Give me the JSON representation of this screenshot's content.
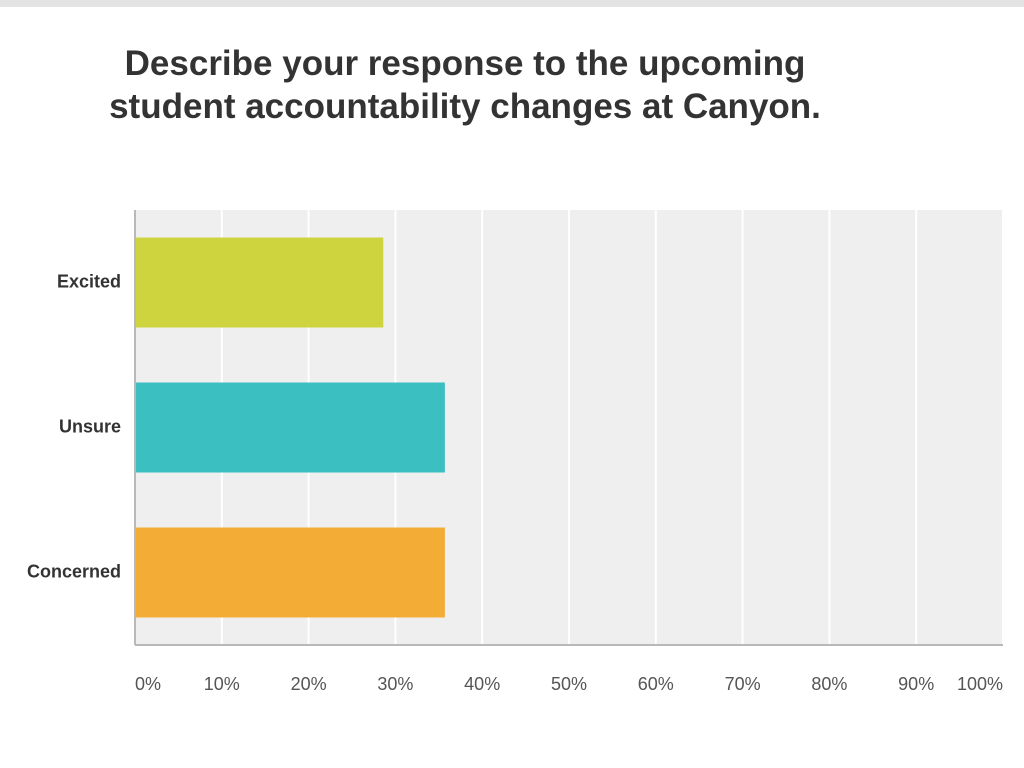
{
  "chart_data": {
    "type": "bar",
    "orientation": "horizontal",
    "title_lines": [
      "Describe your response to the upcoming",
      "student accountability changes at Canyon."
    ],
    "categories": [
      "Excited",
      "Unsure",
      "Concerned"
    ],
    "values": [
      28.6,
      35.7,
      35.7
    ],
    "colors": [
      "#cdd43e",
      "#3bbfc1",
      "#f3ac35"
    ],
    "x_ticks": [
      "0%",
      "10%",
      "20%",
      "30%",
      "40%",
      "50%",
      "60%",
      "70%",
      "80%",
      "90%",
      "100%"
    ],
    "xlim": [
      0,
      100
    ],
    "grid": true,
    "plot_background": "#efefef",
    "grid_color": "#ffffff",
    "xlabel": "",
    "ylabel": ""
  }
}
